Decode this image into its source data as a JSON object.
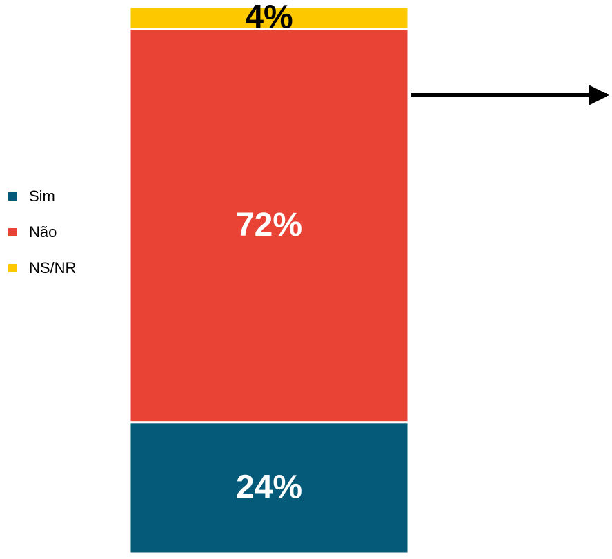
{
  "chart_data": {
    "type": "bar",
    "stacked": true,
    "categories": [
      null
    ],
    "series": [
      {
        "name": "Sim",
        "color": "#045a78",
        "label_color": "#ffffff",
        "values": [
          24
        ],
        "value_labels": [
          "24%"
        ]
      },
      {
        "name": "Não",
        "color": "#e84335",
        "label_color": "#ffffff",
        "values": [
          72
        ],
        "value_labels": [
          "72%"
        ]
      },
      {
        "name": "NS/NR",
        "color": "#fdc800",
        "label_color": "#000000",
        "values": [
          4
        ],
        "value_labels": [
          "4%"
        ]
      }
    ],
    "ylim": [
      0,
      100
    ],
    "legend": "left"
  }
}
